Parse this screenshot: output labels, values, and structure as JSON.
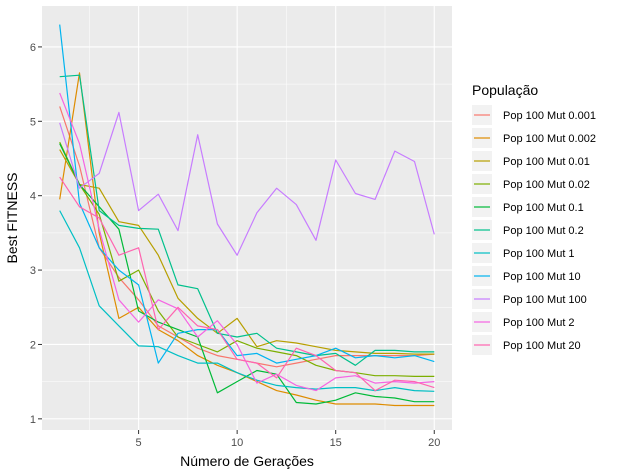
{
  "chart_data": {
    "type": "line",
    "title": "",
    "xlabel": "Número de Gerações",
    "ylabel": "Best FITNESS",
    "xlim": [
      0.1,
      20.9
    ],
    "ylim": [
      0.85,
      6.55
    ],
    "x_ticks": [
      5,
      10,
      15,
      20
    ],
    "x_tick_labels": [
      "5",
      "10",
      "15",
      "20"
    ],
    "y_ticks": [
      1,
      2,
      3,
      4,
      5,
      6
    ],
    "y_tick_labels": [
      "1",
      "2",
      "3",
      "4",
      "5",
      "6"
    ],
    "grid": true,
    "legend": {
      "title": "População",
      "position": "right"
    },
    "x": [
      1,
      2,
      3,
      4,
      5,
      6,
      7,
      8,
      9,
      10,
      11,
      12,
      13,
      14,
      15,
      16,
      17,
      18,
      19,
      20
    ],
    "series": [
      {
        "name": "Pop 100 Mut 0.001",
        "color": "#F8766D",
        "values": [
          5.2,
          4.4,
          3.3,
          2.9,
          2.6,
          2.25,
          2.1,
          1.95,
          1.85,
          1.8,
          1.75,
          1.7,
          1.75,
          1.8,
          1.85,
          1.85,
          1.85,
          1.85,
          1.85,
          1.87
        ]
      },
      {
        "name": "Pop 100 Mut 0.002",
        "color": "#DE8C00",
        "values": [
          3.95,
          5.65,
          3.5,
          2.35,
          2.5,
          2.2,
          2.05,
          1.85,
          1.72,
          1.62,
          1.5,
          1.38,
          1.32,
          1.25,
          1.2,
          1.2,
          1.2,
          1.18,
          1.18,
          1.18
        ]
      },
      {
        "name": "Pop 100 Mut 0.01",
        "color": "#B79F00",
        "values": [
          4.62,
          4.15,
          4.1,
          3.65,
          3.6,
          3.2,
          2.62,
          2.35,
          2.15,
          2.35,
          1.97,
          2.05,
          2.02,
          1.97,
          1.92,
          1.9,
          1.88,
          1.88,
          1.87,
          1.87
        ]
      },
      {
        "name": "Pop 100 Mut 0.02",
        "color": "#7CAE00",
        "values": [
          4.72,
          4.15,
          3.75,
          2.85,
          3.0,
          2.45,
          2.1,
          2.0,
          1.9,
          2.05,
          1.95,
          1.9,
          1.85,
          1.72,
          1.65,
          1.62,
          1.58,
          1.58,
          1.57,
          1.57
        ]
      },
      {
        "name": "Pop 100 Mut 0.1",
        "color": "#00BA38",
        "values": [
          4.7,
          4.15,
          3.85,
          3.55,
          2.45,
          2.3,
          2.2,
          2.1,
          1.35,
          1.5,
          1.65,
          1.6,
          1.22,
          1.2,
          1.25,
          1.35,
          1.3,
          1.28,
          1.23,
          1.23
        ]
      },
      {
        "name": "Pop 100 Mut 0.2",
        "color": "#00C08B",
        "values": [
          5.6,
          5.62,
          3.8,
          3.6,
          3.56,
          3.55,
          2.8,
          2.75,
          2.15,
          2.1,
          2.15,
          1.95,
          1.9,
          1.85,
          1.88,
          1.72,
          1.92,
          1.92,
          1.9,
          1.9
        ]
      },
      {
        "name": "Pop 100 Mut 1",
        "color": "#00BFC4",
        "values": [
          3.8,
          3.3,
          2.52,
          2.25,
          1.98,
          1.97,
          1.85,
          1.75,
          1.75,
          1.62,
          1.52,
          1.45,
          1.42,
          1.4,
          1.42,
          1.42,
          1.38,
          1.42,
          1.38,
          1.37
        ]
      },
      {
        "name": "Pop 100 Mut 10",
        "color": "#00B4F0",
        "values": [
          6.3,
          3.9,
          3.3,
          3.0,
          2.8,
          1.75,
          2.15,
          2.2,
          2.2,
          1.85,
          1.88,
          1.75,
          1.8,
          1.85,
          1.95,
          1.82,
          1.85,
          1.82,
          1.85,
          1.77
        ]
      },
      {
        "name": "Pop 100 Mut 100",
        "color": "#C77CFF",
        "values": [
          4.98,
          4.1,
          4.3,
          5.12,
          3.8,
          4.02,
          3.53,
          4.82,
          3.62,
          3.2,
          3.77,
          4.1,
          3.88,
          3.4,
          4.48,
          4.03,
          3.95,
          4.6,
          4.46,
          3.48
        ]
      },
      {
        "name": "Pop 100 Mut 2",
        "color": "#F564E3",
        "values": [
          5.38,
          4.7,
          3.55,
          2.6,
          2.3,
          2.6,
          2.48,
          2.1,
          2.32,
          2.0,
          1.48,
          1.6,
          1.45,
          1.38,
          1.55,
          1.58,
          1.48,
          1.5,
          1.48,
          1.5
        ]
      },
      {
        "name": "Pop 100 Mut 20",
        "color": "#FF64B0",
        "values": [
          4.25,
          3.85,
          3.7,
          3.2,
          3.3,
          2.2,
          2.5,
          2.25,
          2.2,
          1.8,
          1.75,
          1.55,
          1.95,
          1.85,
          1.65,
          1.62,
          1.38,
          1.52,
          1.5,
          1.42
        ]
      }
    ]
  }
}
